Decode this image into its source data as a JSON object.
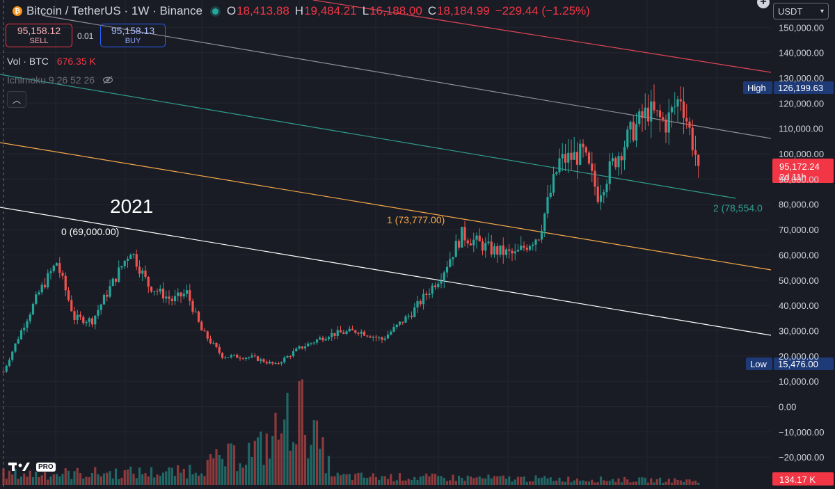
{
  "header": {
    "symbol": "Bitcoin / TetherUS · 1W · Binance",
    "open_label": "O",
    "open": "18,413.88",
    "high_label": "H",
    "high": "19,484.21",
    "low_label": "L",
    "low": "16,188.00",
    "close_label": "C",
    "close": "18,184.99",
    "change": "−229.44 (−1.25%)"
  },
  "trade": {
    "sell_price": "95,158.12",
    "sell_label": "SELL",
    "spread": "0.01",
    "buy_price": "95,158.13",
    "buy_label": "BUY"
  },
  "indicators": {
    "vol_label": "Vol · BTC",
    "vol_value": "676.35 K",
    "ichimoku": "Ichimoku 9 26 52 26"
  },
  "currency_select": "USDT",
  "colors": {
    "background": "#1a1c25",
    "up": "#26a69a",
    "down": "#ef5350",
    "fib_0": "#ffffff",
    "fib_1": "#f5a94a",
    "fib_2": "#2f9e8f",
    "channel_mid": "#8d9099",
    "channel_top": "#e04556",
    "high_badge": "#1e3b78",
    "price_badge": "#f23645"
  },
  "icons": [
    "bitcoin-icon",
    "live-status-icon",
    "eye-off-icon",
    "collapse-icon",
    "plus-icon",
    "tradingview-logo"
  ],
  "chart_data": {
    "type": "candlestick",
    "y_axis_ticks": [
      "150,000.00",
      "140,000.00",
      "130,000.00",
      "120,000.00",
      "110,000.00",
      "100,000.00",
      "90,000.00",
      "80,000.00",
      "70,000.00",
      "60,000.00",
      "50,000.00",
      "40,000.00",
      "30,000.00",
      "20,000.00",
      "10,000.00",
      "0.00",
      "−10,000.00",
      "−20,000.00"
    ],
    "y_ticks_values": [
      150000,
      140000,
      130000,
      120000,
      110000,
      100000,
      90000,
      80000,
      70000,
      60000,
      50000,
      40000,
      30000,
      20000,
      10000,
      0,
      -10000,
      -20000
    ],
    "ylim": [
      -28000,
      158000
    ],
    "high_label": "High",
    "high_value": "126,199.63",
    "low_label": "Low",
    "low_value": "15,476.00",
    "last_price": "95,172.24",
    "countdown": "2d 11h",
    "volume_last": "134.17 K",
    "year_annotation": "2021",
    "fib_levels": [
      {
        "label": "0 (69,000.00)",
        "value": 69000
      },
      {
        "label": "1 (73,777.00)",
        "value": 73777
      },
      {
        "label": "2 (78,554.0",
        "value": 78554
      }
    ],
    "anchors": [
      {
        "week": 0,
        "price": 13800
      },
      {
        "week": 6,
        "price": 30000
      },
      {
        "week": 12,
        "price": 45000
      },
      {
        "week": 18,
        "price": 57000
      },
      {
        "week": 24,
        "price": 35000
      },
      {
        "week": 30,
        "price": 34000
      },
      {
        "week": 36,
        "price": 47000
      },
      {
        "week": 43,
        "price": 62000
      },
      {
        "week": 49,
        "price": 48000
      },
      {
        "week": 57,
        "price": 42000
      },
      {
        "week": 62,
        "price": 45000
      },
      {
        "week": 67,
        "price": 30000
      },
      {
        "week": 74,
        "price": 20000
      },
      {
        "week": 84,
        "price": 19500
      },
      {
        "week": 92,
        "price": 16500
      },
      {
        "week": 100,
        "price": 23000
      },
      {
        "week": 110,
        "price": 28500
      },
      {
        "week": 120,
        "price": 30000
      },
      {
        "week": 128,
        "price": 26500
      },
      {
        "week": 138,
        "price": 37000
      },
      {
        "week": 148,
        "price": 52000
      },
      {
        "week": 155,
        "price": 68000
      },
      {
        "week": 165,
        "price": 62000
      },
      {
        "week": 173,
        "price": 60000
      },
      {
        "week": 181,
        "price": 68000
      },
      {
        "week": 188,
        "price": 97000
      },
      {
        "week": 196,
        "price": 100000
      },
      {
        "week": 201,
        "price": 84000
      },
      {
        "week": 206,
        "price": 96000
      },
      {
        "week": 212,
        "price": 108000
      },
      {
        "week": 218,
        "price": 117000
      },
      {
        "week": 224,
        "price": 112000
      },
      {
        "week": 229,
        "price": 123000
      },
      {
        "week": 235,
        "price": 95172
      }
    ],
    "volume_anchors": [
      {
        "week": 0,
        "value": 1
      },
      {
        "week": 60,
        "value": 1.2
      },
      {
        "week": 88,
        "value": 3.5
      },
      {
        "week": 100,
        "value": 7.2
      },
      {
        "week": 112,
        "value": 0.8
      },
      {
        "week": 235,
        "value": 0.4
      }
    ]
  }
}
